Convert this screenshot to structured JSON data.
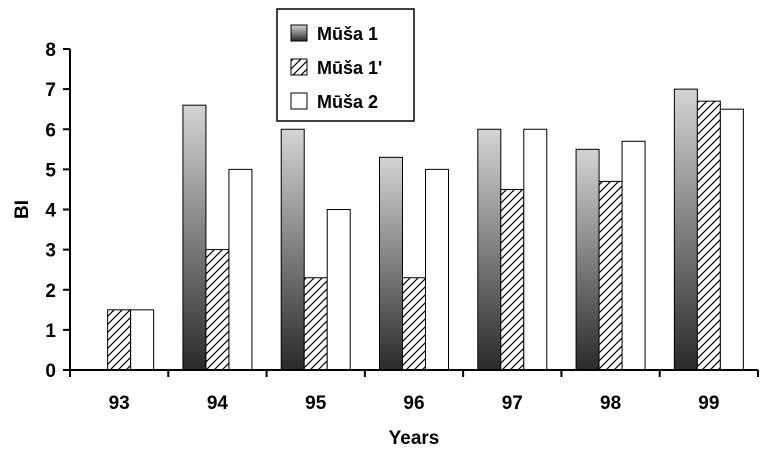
{
  "chart_data": {
    "type": "bar",
    "categories": [
      "93",
      "94",
      "95",
      "96",
      "97",
      "98",
      "99"
    ],
    "series": [
      {
        "name": "Mūša 1",
        "values": [
          null,
          6.6,
          6.0,
          5.3,
          6.0,
          5.5,
          7.0
        ],
        "pattern": "gradient"
      },
      {
        "name": "Mūša 1'",
        "values": [
          1.5,
          3.0,
          2.3,
          2.3,
          4.5,
          4.7,
          6.7
        ],
        "pattern": "hatch"
      },
      {
        "name": "Mūša 2",
        "values": [
          1.5,
          5.0,
          4.0,
          5.0,
          6.0,
          5.7,
          6.5
        ],
        "pattern": "white"
      }
    ],
    "xlabel": "Years",
    "ylabel": "BI",
    "ylim": [
      0,
      8
    ],
    "yticks": [
      "0",
      "1",
      "2",
      "3",
      "4",
      "5",
      "6",
      "7",
      "8"
    ],
    "grid": false,
    "legend_position": "top-center"
  },
  "colors": {
    "gradient_top": "#d4d4d4",
    "gradient_bottom": "#2a2a2a",
    "stroke": "#000000",
    "white_fill": "#ffffff"
  }
}
